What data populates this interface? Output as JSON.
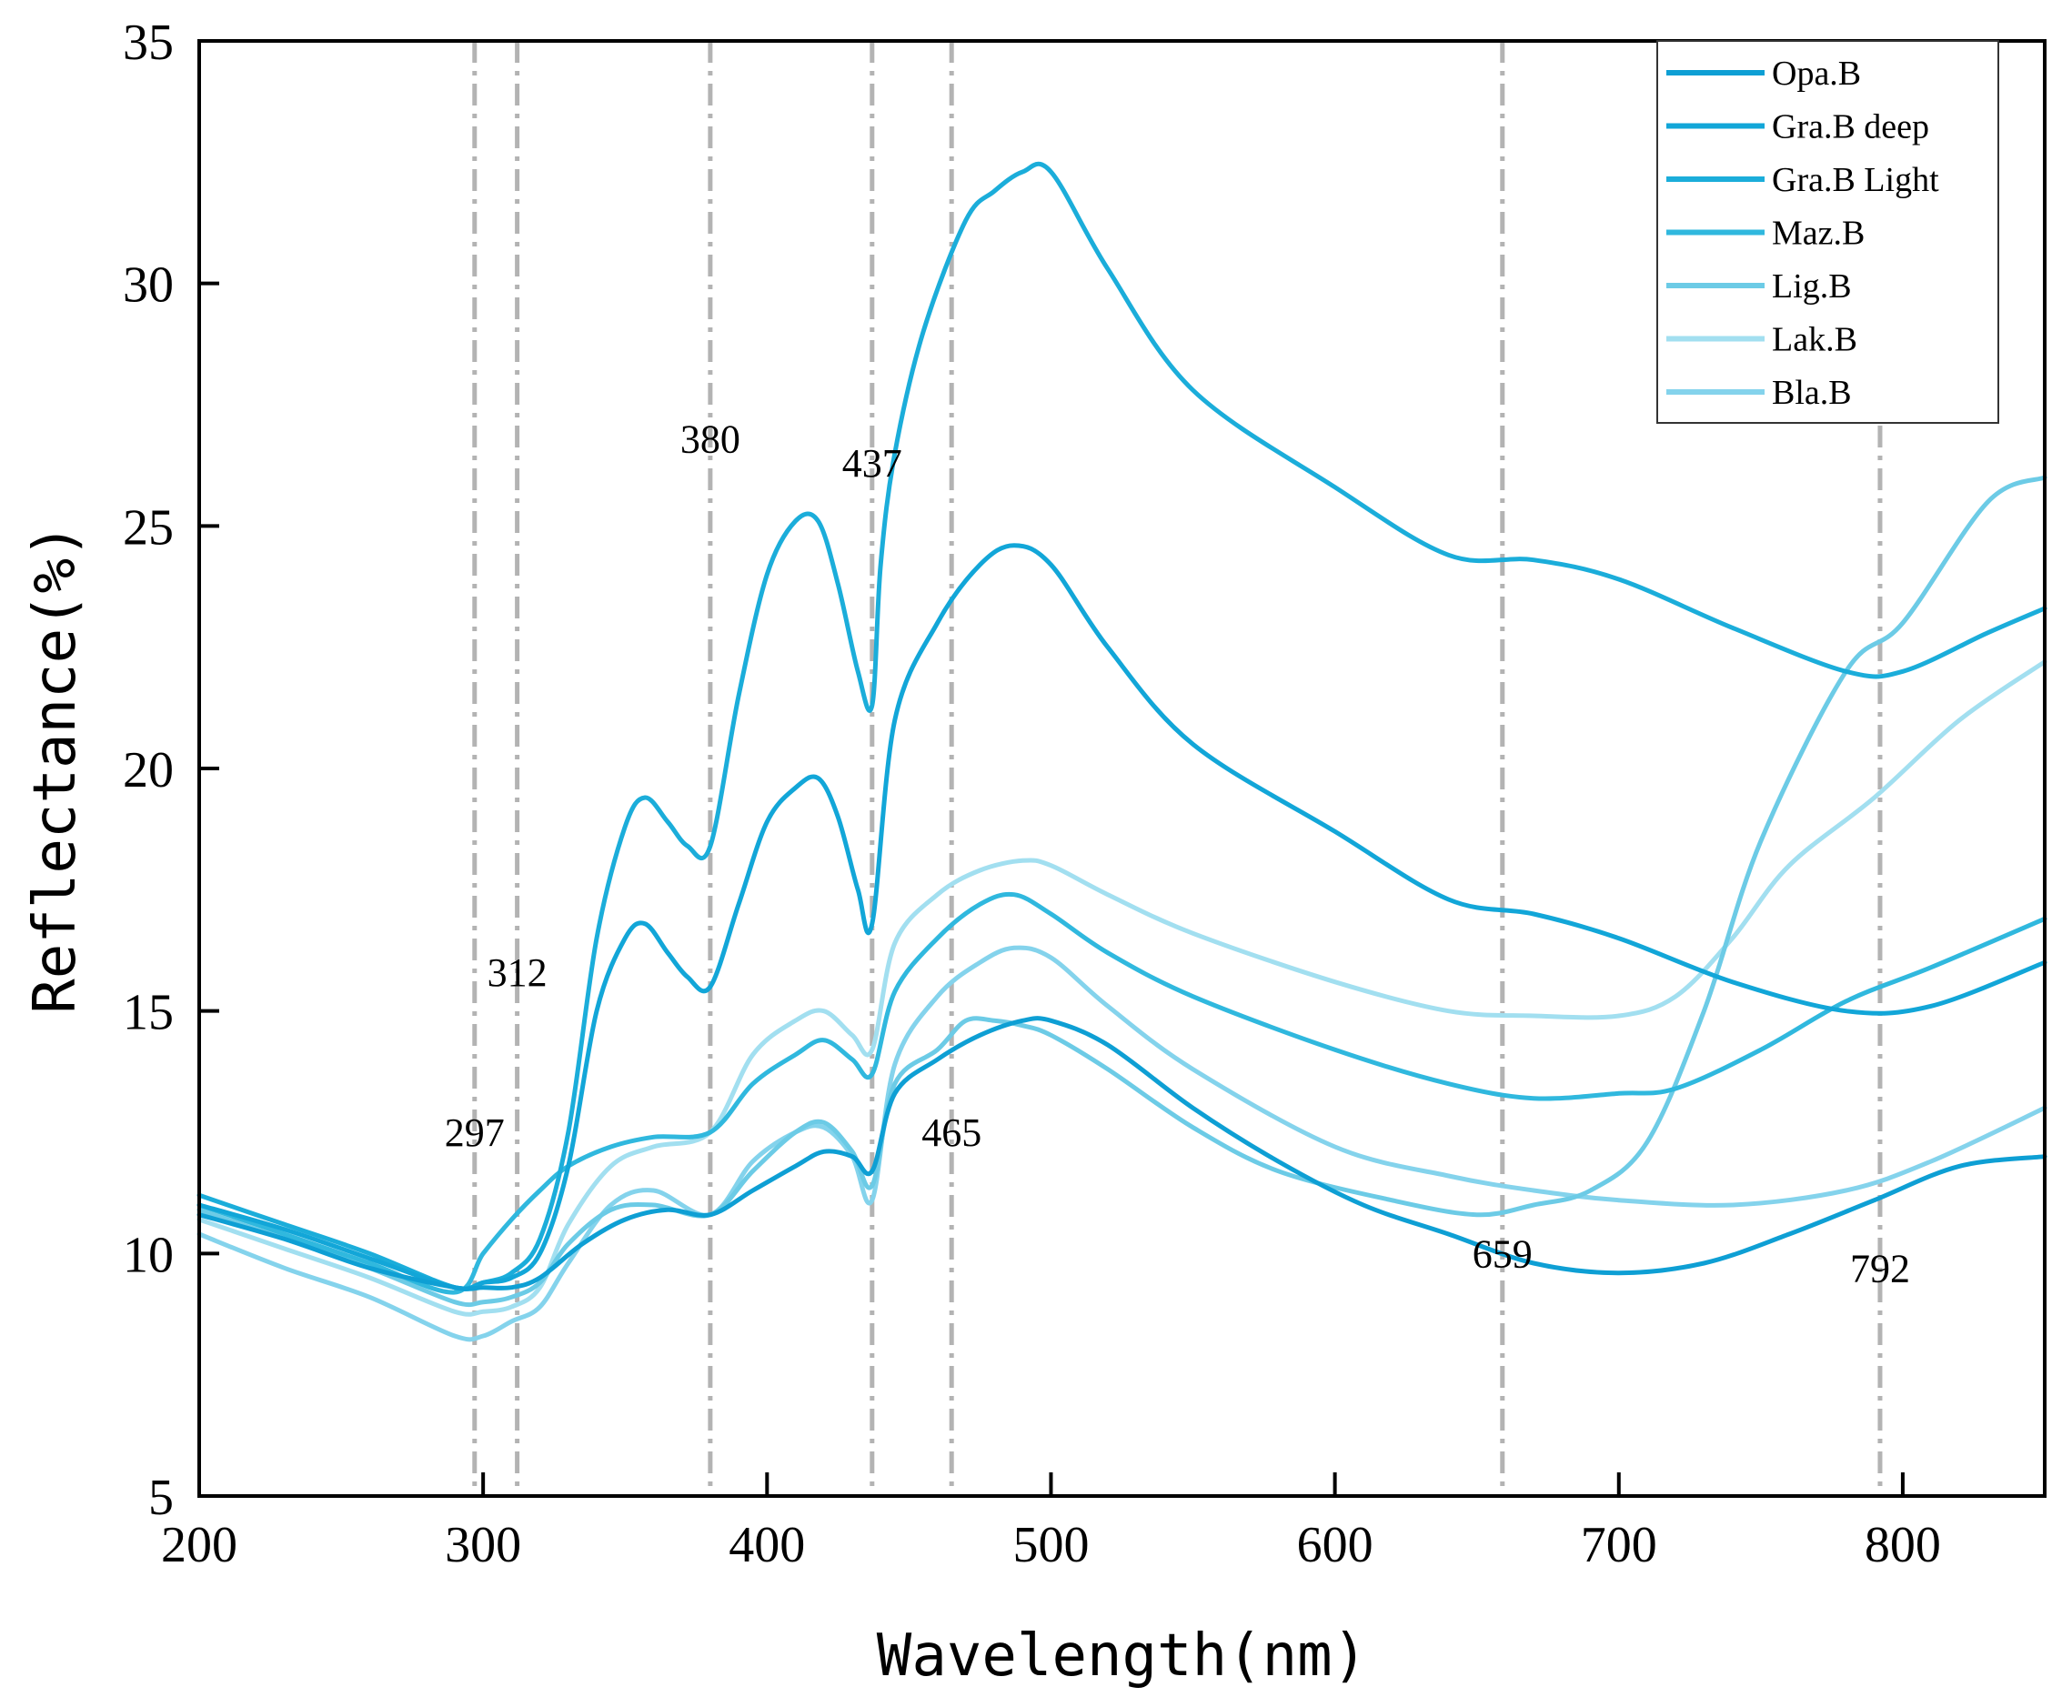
{
  "chart_data": {
    "type": "line",
    "title": "",
    "xlabel": "Wavelength(nm)",
    "ylabel": "Reflectance(%)",
    "xlim": [
      200,
      850
    ],
    "ylim": [
      5,
      35
    ],
    "xticks": [
      200,
      300,
      400,
      500,
      600,
      700,
      800
    ],
    "yticks": [
      5,
      10,
      15,
      20,
      25,
      30,
      35
    ],
    "grid": false,
    "legend_position": "top-right",
    "reference_lines": [
      {
        "x": 297,
        "label": "297",
        "label_y": 12.5
      },
      {
        "x": 312,
        "label": "312",
        "label_y": 15.8
      },
      {
        "x": 380,
        "label": "380",
        "label_y": 26.8
      },
      {
        "x": 437,
        "label": "437",
        "label_y": 26.3
      },
      {
        "x": 465,
        "label": "465",
        "label_y": 12.5
      },
      {
        "x": 659,
        "label": "659",
        "label_y": 10.0
      },
      {
        "x": 792,
        "label": "792",
        "label_y": 9.7
      }
    ],
    "series": [
      {
        "name": "Opa.B",
        "color": "#0e9fd4",
        "x": [
          200,
          230,
          260,
          290,
          300,
          310,
          320,
          335,
          350,
          365,
          380,
          395,
          410,
          420,
          430,
          437,
          445,
          460,
          475,
          490,
          500,
          520,
          550,
          580,
          610,
          640,
          670,
          700,
          730,
          760,
          790,
          820,
          850
        ],
        "y": [
          10.8,
          10.3,
          9.7,
          9.3,
          9.3,
          9.3,
          9.5,
          10.2,
          10.7,
          10.9,
          10.8,
          11.3,
          11.8,
          12.1,
          12.0,
          11.7,
          13.3,
          14.0,
          14.5,
          14.8,
          14.8,
          14.3,
          13.0,
          11.9,
          11.0,
          10.4,
          9.8,
          9.6,
          9.8,
          10.4,
          11.1,
          11.8,
          12.0
        ]
      },
      {
        "name": "Gra.B deep",
        "color": "#12a6d8",
        "x": [
          200,
          230,
          260,
          290,
          300,
          310,
          320,
          330,
          340,
          350,
          357,
          365,
          372,
          380,
          390,
          400,
          410,
          418,
          425,
          432,
          437,
          445,
          460,
          475,
          487,
          500,
          520,
          550,
          600,
          640,
          670,
          700,
          740,
          780,
          810,
          850
        ],
        "y": [
          11.0,
          10.5,
          9.9,
          9.3,
          9.4,
          9.5,
          10.0,
          11.8,
          15.0,
          16.5,
          16.8,
          16.2,
          15.7,
          15.5,
          17.2,
          18.9,
          19.6,
          19.8,
          19.0,
          17.5,
          16.8,
          21.0,
          23.0,
          24.2,
          24.6,
          24.2,
          22.5,
          20.5,
          18.7,
          17.3,
          17.0,
          16.5,
          15.6,
          15.0,
          15.1,
          16.0
        ]
      },
      {
        "name": "Gra.B Light",
        "color": "#1badda",
        "x": [
          200,
          230,
          260,
          290,
          300,
          310,
          320,
          330,
          340,
          350,
          357,
          365,
          372,
          380,
          390,
          400,
          410,
          418,
          425,
          432,
          437,
          440,
          445,
          455,
          470,
          480,
          490,
          500,
          520,
          550,
          600,
          640,
          670,
          700,
          740,
          780,
          800,
          830,
          850
        ],
        "y": [
          11.2,
          10.6,
          10.0,
          9.3,
          9.4,
          9.6,
          10.3,
          12.5,
          16.5,
          18.8,
          19.4,
          18.9,
          18.4,
          18.4,
          21.5,
          24.0,
          25.1,
          25.1,
          23.8,
          22.0,
          21.3,
          24.2,
          26.5,
          29.0,
          31.3,
          31.9,
          32.3,
          32.3,
          30.3,
          27.8,
          25.8,
          24.4,
          24.3,
          23.9,
          22.9,
          22.0,
          22.0,
          22.8,
          23.3
        ]
      },
      {
        "name": "Maz.B",
        "color": "#30b8de",
        "x": [
          200,
          230,
          260,
          290,
          300,
          310,
          320,
          330,
          345,
          360,
          380,
          395,
          410,
          420,
          430,
          437,
          445,
          460,
          475,
          487,
          500,
          520,
          550,
          600,
          640,
          670,
          700,
          720,
          750,
          780,
          810,
          850
        ],
        "y": [
          11.0,
          10.4,
          9.8,
          9.2,
          10.0,
          10.7,
          11.3,
          11.8,
          12.2,
          12.4,
          12.5,
          13.5,
          14.1,
          14.4,
          14.0,
          13.7,
          15.4,
          16.5,
          17.2,
          17.4,
          17.0,
          16.2,
          15.3,
          14.2,
          13.5,
          13.2,
          13.3,
          13.4,
          14.2,
          15.2,
          15.9,
          16.9
        ]
      },
      {
        "name": "Lig.B",
        "color": "#6ccbe6",
        "x": [
          200,
          230,
          260,
          290,
          300,
          310,
          320,
          330,
          345,
          360,
          380,
          395,
          410,
          420,
          430,
          437,
          445,
          460,
          470,
          480,
          490,
          500,
          520,
          550,
          580,
          620,
          650,
          670,
          690,
          710,
          730,
          750,
          780,
          800,
          830,
          850
        ],
        "y": [
          10.9,
          10.3,
          9.7,
          9.0,
          9.0,
          9.1,
          9.4,
          10.2,
          10.9,
          11.0,
          10.8,
          11.7,
          12.5,
          12.7,
          12.1,
          11.4,
          13.5,
          14.2,
          14.8,
          14.8,
          14.7,
          14.5,
          13.8,
          12.6,
          11.7,
          11.1,
          10.8,
          11.0,
          11.3,
          12.3,
          15.0,
          18.5,
          22.0,
          23.0,
          25.5,
          26.0
        ]
      },
      {
        "name": "Lak.B",
        "color": "#a2dff0",
        "x": [
          200,
          230,
          260,
          290,
          300,
          310,
          320,
          330,
          345,
          360,
          380,
          395,
          410,
          420,
          430,
          437,
          445,
          460,
          475,
          490,
          500,
          520,
          550,
          600,
          640,
          670,
          700,
          720,
          740,
          760,
          790,
          820,
          850
        ],
        "y": [
          10.7,
          10.1,
          9.5,
          8.8,
          8.8,
          8.9,
          9.3,
          10.6,
          11.8,
          12.2,
          12.5,
          14.1,
          14.8,
          15.0,
          14.5,
          14.2,
          16.4,
          17.4,
          17.9,
          18.1,
          18.0,
          17.4,
          16.6,
          15.6,
          15.0,
          14.9,
          14.9,
          15.3,
          16.5,
          18.0,
          19.4,
          21.0,
          22.2
        ]
      },
      {
        "name": "Bla.B",
        "color": "#84d3ec",
        "x": [
          200,
          230,
          260,
          290,
          300,
          310,
          320,
          330,
          345,
          360,
          380,
          395,
          410,
          420,
          430,
          437,
          445,
          460,
          475,
          487,
          500,
          520,
          550,
          600,
          640,
          670,
          700,
          740,
          780,
          810,
          850
        ],
        "y": [
          10.4,
          9.7,
          9.1,
          8.3,
          8.3,
          8.6,
          8.9,
          9.8,
          11.0,
          11.3,
          10.8,
          11.9,
          12.5,
          12.6,
          12.0,
          11.1,
          13.9,
          15.3,
          16.0,
          16.3,
          16.1,
          15.1,
          13.8,
          12.2,
          11.6,
          11.3,
          11.1,
          11.0,
          11.3,
          11.9,
          13.0
        ]
      }
    ]
  }
}
